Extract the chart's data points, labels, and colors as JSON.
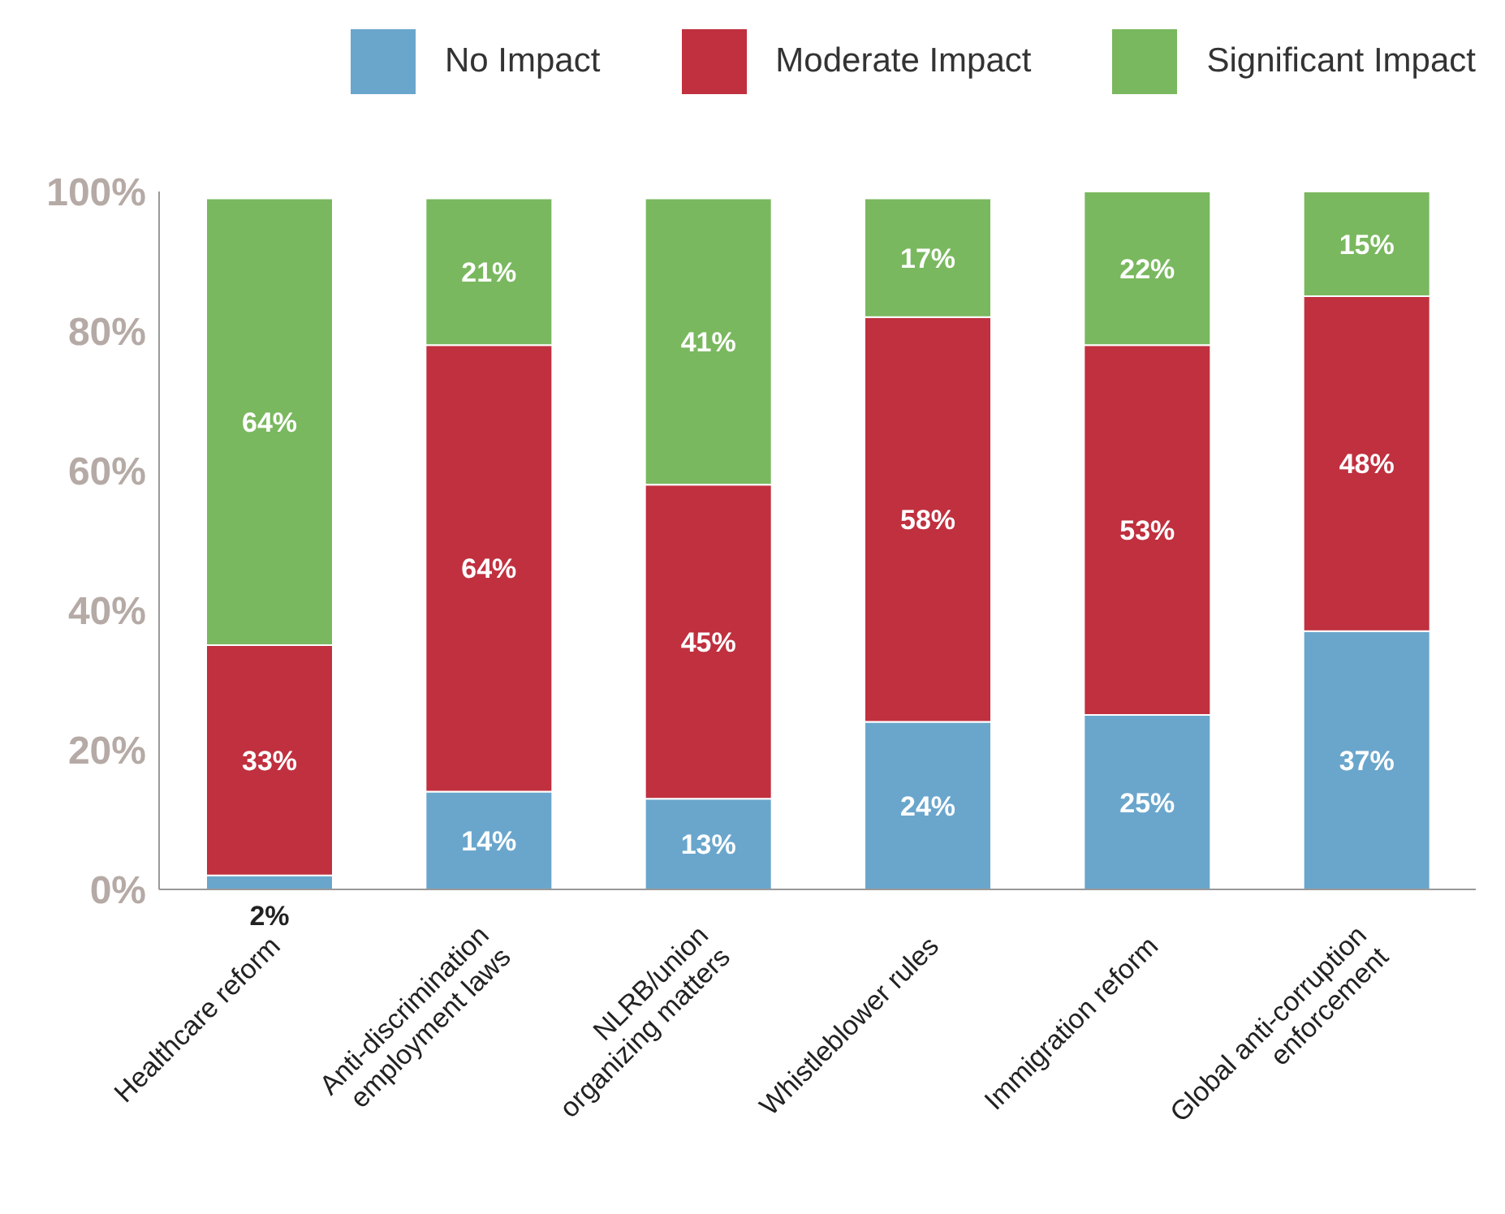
{
  "chart_data": {
    "type": "bar",
    "stacked": true,
    "categories": [
      "Healthcare reform",
      "Anti-discrimination\nemployment laws",
      "NLRB/union\norganizing matters",
      "Whistleblower rules",
      "Immigration reform",
      "Global anti-corruption\nenforcement"
    ],
    "series": [
      {
        "name": "No Impact",
        "color": "#6aa6cc",
        "values": [
          2,
          14,
          13,
          24,
          25,
          37
        ],
        "value_labels": [
          "2%",
          "14%",
          "13%",
          "24%",
          "25%",
          "37%"
        ]
      },
      {
        "name": "Moderate Impact",
        "color": "#c0303f",
        "values": [
          33,
          64,
          45,
          58,
          53,
          48
        ],
        "value_labels": [
          "33%",
          "64%",
          "45%",
          "58%",
          "53%",
          "48%"
        ]
      },
      {
        "name": "Significant Impact",
        "color": "#7ab85f",
        "values": [
          64,
          21,
          41,
          17,
          22,
          15
        ],
        "value_labels": [
          "64%",
          "21%",
          "41%",
          "17%",
          "22%",
          "15%"
        ]
      }
    ],
    "ylim": [
      0,
      100
    ],
    "yticks": [
      {
        "value": 0,
        "label": "0%"
      },
      {
        "value": 20,
        "label": "20%"
      },
      {
        "value": 40,
        "label": "40%"
      },
      {
        "value": 60,
        "label": "60%"
      },
      {
        "value": 80,
        "label": "80%"
      },
      {
        "value": 100,
        "label": "100%"
      }
    ],
    "grid": false,
    "legend": "top"
  }
}
